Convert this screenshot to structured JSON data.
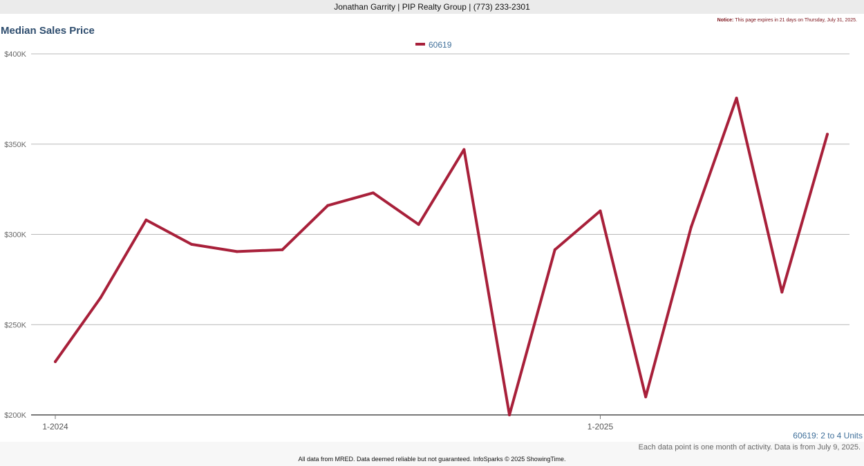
{
  "header": {
    "text": "Jonathan Garrity | PIP Realty Group | (773) 233-2301"
  },
  "notice": {
    "label": "Notice:",
    "text": "This page expires in 21 days on Thursday, July 31, 2025."
  },
  "chart_data": {
    "type": "line",
    "title": "Median Sales Price",
    "xlabel": "",
    "ylabel": "",
    "ylim": [
      200000,
      400000
    ],
    "yticks": [
      200000,
      250000,
      300000,
      350000,
      400000
    ],
    "ytick_labels": [
      "$200K",
      "$250K",
      "$300K",
      "$350K",
      "$400K"
    ],
    "x": [
      "1-2024",
      "2-2024",
      "3-2024",
      "4-2024",
      "5-2024",
      "6-2024",
      "7-2024",
      "8-2024",
      "9-2024",
      "10-2024",
      "11-2024",
      "12-2024",
      "1-2025",
      "2-2025",
      "3-2025",
      "4-2025",
      "5-2025",
      "6-2025"
    ],
    "xtick_labels": [
      "1-2024",
      "1-2025"
    ],
    "grid": true,
    "legend": "top-center",
    "series": [
      {
        "name": "60619",
        "color": "#a8203a",
        "values": [
          229500,
          265000,
          308000,
          294500,
          290500,
          291500,
          316000,
          323000,
          305500,
          347000,
          200000,
          291500,
          313000,
          210000,
          304000,
          375500,
          268000,
          355500
        ]
      }
    ]
  },
  "units_note": "60619: 2 to 4 Units",
  "data_note": "Each data point is one month of activity. Data is from July 9, 2025.",
  "footer": "All data from MRED. Data deemed reliable but not guaranteed. InfoSparks © 2025 ShowingTime."
}
